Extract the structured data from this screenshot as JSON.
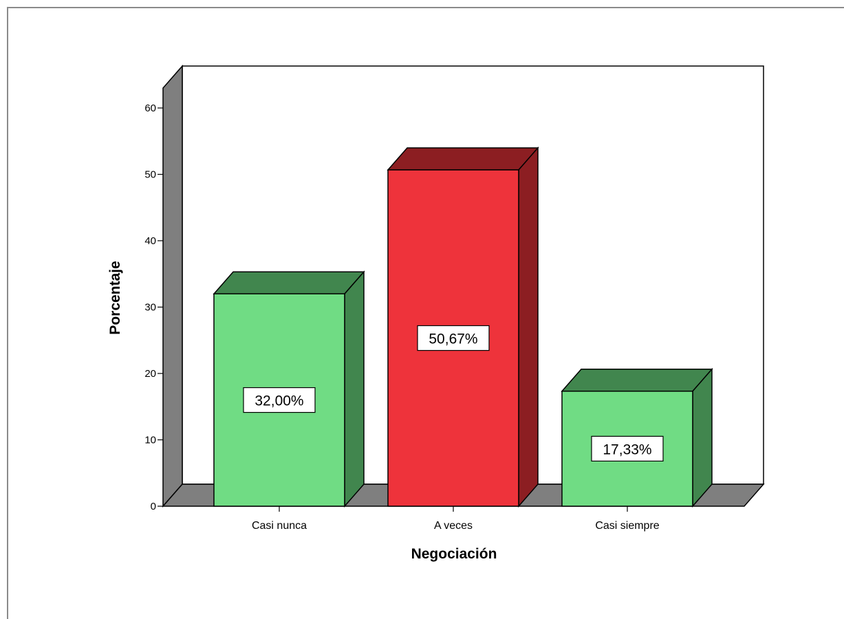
{
  "chart_data": {
    "type": "bar",
    "style": "3d",
    "categories": [
      "Casi nunca",
      "A veces",
      "Casi siempre"
    ],
    "values": [
      32.0,
      50.67,
      17.33
    ],
    "data_labels": [
      "32,00%",
      "50,67%",
      "17,33%"
    ],
    "xlabel": "Negociación",
    "ylabel": "Porcentaje",
    "ylim": [
      0,
      60
    ],
    "yticks": [
      0,
      10,
      20,
      30,
      40,
      50,
      60
    ],
    "grid": false,
    "colors": {
      "green_front": "#70DC84",
      "green_side": "#41864E",
      "red_front": "#EE333B",
      "red_side": "#8C1E22",
      "floor": "#7F7F7F"
    },
    "bar_colors": [
      "green",
      "red",
      "green"
    ]
  }
}
